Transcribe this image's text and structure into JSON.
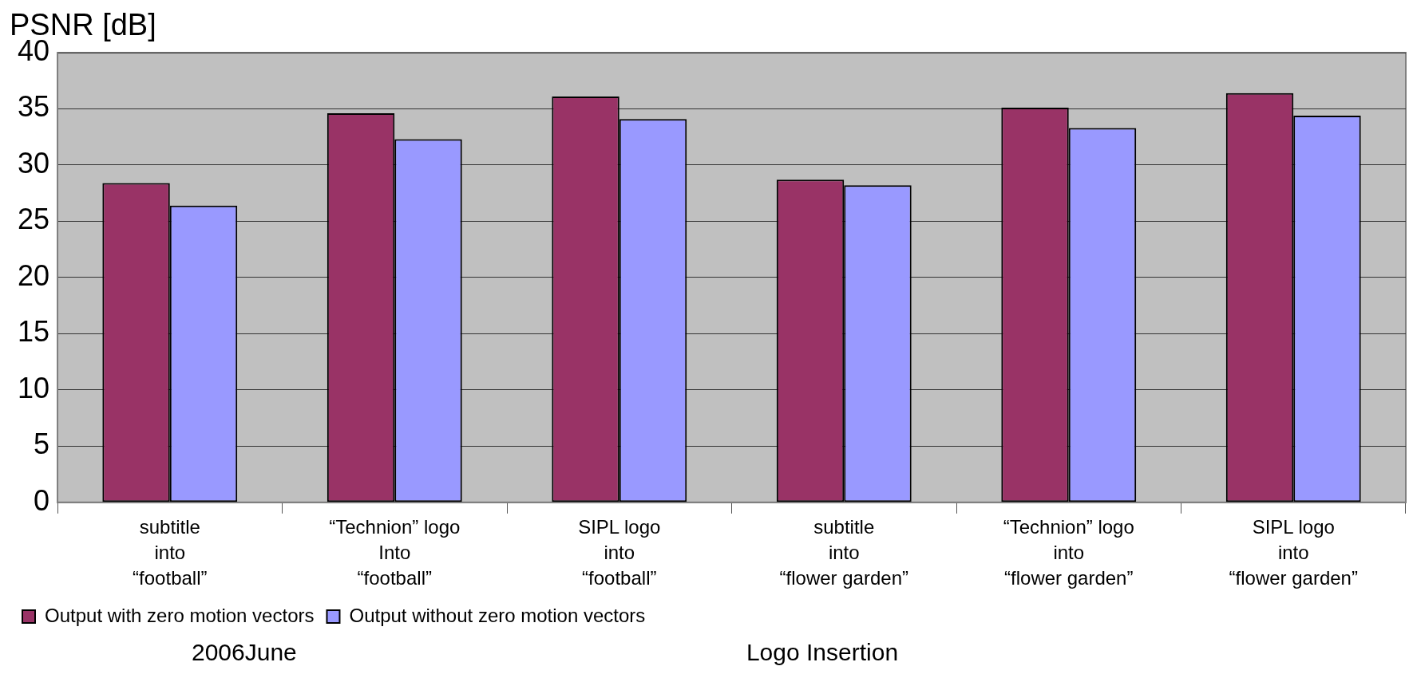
{
  "chart_data": {
    "type": "bar",
    "ylabel": "PSNR [dB]",
    "categories": [
      "subtitle\ninto\n“football”",
      "“Technion” logo\nInto\n“football”",
      "SIPL logo\ninto\n“football”",
      "subtitle\ninto\n“flower garden”",
      "“Technion” logo\ninto\n“flower garden”",
      "SIPL logo\ninto\n“flower garden”"
    ],
    "series": [
      {
        "name": "Output with zero motion vectors",
        "color": "#993366",
        "values": [
          28.4,
          34.6,
          36.1,
          28.7,
          35.1,
          36.4
        ]
      },
      {
        "name": "Output without zero motion vectors",
        "color": "#9999ff",
        "values": [
          26.4,
          32.3,
          34.1,
          28.2,
          33.3,
          34.4
        ]
      }
    ],
    "ylim": [
      0,
      40
    ],
    "yticks": [
      0,
      5,
      10,
      15,
      20,
      25,
      30,
      35,
      40
    ],
    "grid": "y",
    "legend": "bottom left",
    "annotations": [
      "2006June",
      "Logo Insertion"
    ]
  }
}
